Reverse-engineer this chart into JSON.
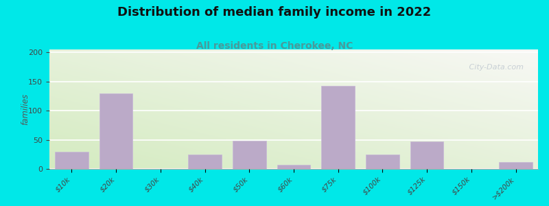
{
  "categories": [
    "$10k",
    "$20k",
    "$30k",
    "$40k",
    "$50k",
    "$60k",
    "$75k",
    "$100k",
    "$125k",
    "$150k",
    ">$200k"
  ],
  "values": [
    30,
    130,
    0,
    25,
    48,
    7,
    142,
    25,
    47,
    0,
    12
  ],
  "bar_color": "#bbaac8",
  "bar_edgecolor": "#c8b8d8",
  "title": "Distribution of median family income in 2022",
  "subtitle": "All residents in Cherokee, NC",
  "ylabel": "families",
  "ylim": [
    0,
    205
  ],
  "yticks": [
    0,
    50,
    100,
    150,
    200
  ],
  "background_outer": "#00e8e8",
  "grad_bottom_left": "#d4ebc0",
  "grad_top_right": "#f8f8f5",
  "title_fontsize": 13,
  "subtitle_fontsize": 10,
  "subtitle_color": "#4a9a9a",
  "watermark": "   City-Data.com",
  "watermark_color": "#c0c8d0"
}
